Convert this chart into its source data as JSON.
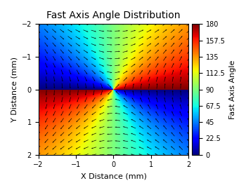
{
  "title": "Fast Axis Angle Distribution",
  "xlabel": "X Distance (mm)",
  "ylabel": "Y Distance (mm)",
  "colorbar_label": "Fast Axis Angle",
  "xlim": [
    -2,
    2
  ],
  "ylim": [
    -2,
    2
  ],
  "clim": [
    0,
    180
  ],
  "colorbar_ticks": [
    0,
    22.5,
    45,
    67.5,
    90,
    112.5,
    135,
    157.5,
    180
  ],
  "n_grid": 300,
  "n_quiver": 20,
  "colormap": "jet",
  "figsize": [
    3.5,
    2.71
  ],
  "dpi": 100,
  "title_fontsize": 10,
  "label_fontsize": 8,
  "tick_fontsize": 7,
  "colorbar_fontsize": 8
}
